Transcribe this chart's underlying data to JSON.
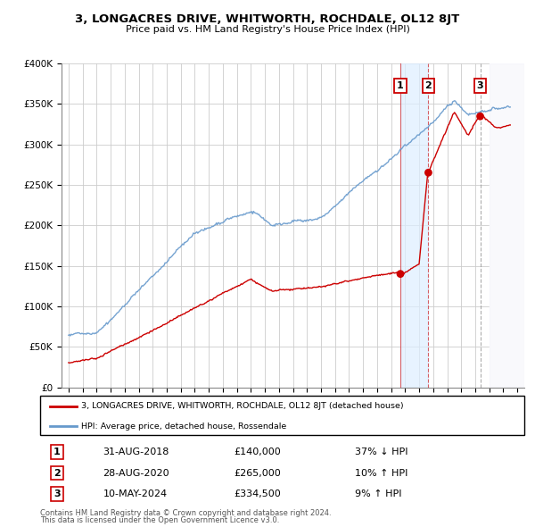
{
  "title": "3, LONGACRES DRIVE, WHITWORTH, ROCHDALE, OL12 8JT",
  "subtitle": "Price paid vs. HM Land Registry's House Price Index (HPI)",
  "transactions": [
    {
      "num": 1,
      "date": "31-AUG-2018",
      "date_val": 2018.664,
      "price": 140000,
      "hpi_rel": "37% ↓ HPI"
    },
    {
      "num": 2,
      "date": "28-AUG-2020",
      "date_val": 2020.66,
      "price": 265000,
      "hpi_rel": "10% ↑ HPI"
    },
    {
      "num": 3,
      "date": "10-MAY-2024",
      "date_val": 2024.356,
      "price": 334500,
      "hpi_rel": "9% ↑ HPI"
    }
  ],
  "legend_property": "3, LONGACRES DRIVE, WHITWORTH, ROCHDALE, OL12 8JT (detached house)",
  "legend_hpi": "HPI: Average price, detached house, Rossendale",
  "footer1": "Contains HM Land Registry data © Crown copyright and database right 2024.",
  "footer2": "This data is licensed under the Open Government Licence v3.0.",
  "property_color": "#cc0000",
  "hpi_color": "#6699cc",
  "highlight_color": "#ddeeff",
  "ylim_max": 400000,
  "xlim_min": 1994.5,
  "xlim_max": 2027.5,
  "yticks": [
    0,
    50000,
    100000,
    150000,
    200000,
    250000,
    300000,
    350000,
    400000
  ],
  "ytick_labels": [
    "£0",
    "£50K",
    "£100K",
    "£150K",
    "£200K",
    "£250K",
    "£300K",
    "£350K",
    "£400K"
  ],
  "xticks": [
    1995,
    1996,
    1997,
    1998,
    1999,
    2000,
    2001,
    2002,
    2003,
    2004,
    2005,
    2006,
    2007,
    2008,
    2009,
    2010,
    2011,
    2012,
    2013,
    2014,
    2015,
    2016,
    2017,
    2018,
    2019,
    2020,
    2021,
    2022,
    2023,
    2024,
    2025,
    2026,
    2027
  ],
  "future_start": 2025.0
}
